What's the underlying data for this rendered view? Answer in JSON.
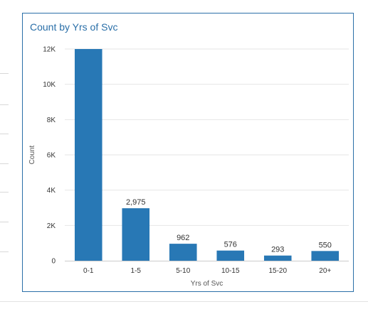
{
  "chart_data": {
    "type": "bar",
    "title": "Count by Yrs of Svc",
    "xlabel": "Yrs of Svc",
    "ylabel": "Count",
    "categories": [
      "0-1",
      "1-5",
      "5-10",
      "10-15",
      "15-20",
      "20+"
    ],
    "values": [
      12000,
      2975,
      962,
      576,
      293,
      550
    ],
    "data_labels": [
      "",
      "2,975",
      "962",
      "576",
      "293",
      "550"
    ],
    "ylim": [
      0,
      12000
    ],
    "yticks": [
      0,
      2000,
      4000,
      6000,
      8000,
      10000,
      12000
    ],
    "ytick_labels": [
      "0",
      "2K",
      "4K",
      "6K",
      "8K",
      "10K",
      "12K"
    ],
    "grid": true,
    "legend": "none",
    "bar_color": "#2878b5",
    "title_color": "#2a6fa8"
  }
}
